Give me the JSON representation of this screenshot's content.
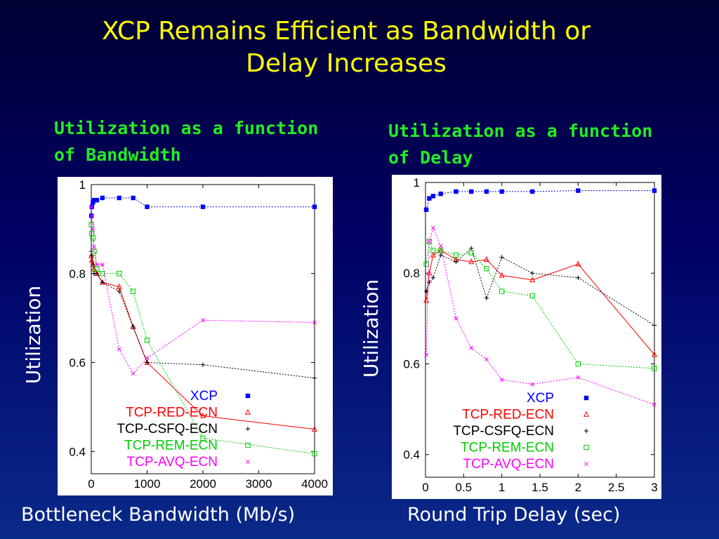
{
  "slide": {
    "title_line1": "XCP Remains Efficient as Bandwidth or",
    "title_line2": "Delay Increases"
  },
  "colors": {
    "XCP": "#0000ff",
    "TCP-RED-ECN": "#ff0000",
    "TCP-CSFQ-ECN": "#000000",
    "TCP-REM-ECN": "#00cc00",
    "TCP-AVQ-ECN": "#ff00ff"
  },
  "chart_data": [
    {
      "type": "line",
      "subtitle_line1": "Utilization as a function",
      "subtitle_line2": "of Bandwidth",
      "ylabel": "Utilization",
      "xlabel": "Bottleneck Bandwidth (Mb/s)",
      "xlim": [
        0,
        4000
      ],
      "ylim": [
        0.35,
        1.0
      ],
      "xticks": [
        {
          "v": 0,
          "label": "0"
        },
        {
          "v": 1000,
          "label": "1000"
        },
        {
          "v": 2000,
          "label": "2000"
        },
        {
          "v": 3000,
          "label": "3000"
        },
        {
          "v": 4000,
          "label": "4000"
        }
      ],
      "yticks": [
        {
          "v": 0.4,
          "label": "0.4"
        },
        {
          "v": 0.6,
          "label": "0.6"
        },
        {
          "v": 0.8,
          "label": "0.8"
        },
        {
          "v": 1.0,
          "label": "1"
        }
      ],
      "series": [
        {
          "name": "XCP",
          "marker": "square-filled",
          "x": [
            1,
            10,
            30,
            50,
            100,
            200,
            500,
            750,
            1000,
            2000,
            4000
          ],
          "y": [
            0.93,
            0.95,
            0.96,
            0.965,
            0.965,
            0.97,
            0.97,
            0.97,
            0.95,
            0.95,
            0.95
          ]
        },
        {
          "name": "TCP-RED-ECN",
          "marker": "triangle",
          "x": [
            1,
            10,
            30,
            50,
            100,
            200,
            500,
            750,
            1000,
            2000,
            4000
          ],
          "y": [
            0.84,
            0.83,
            0.82,
            0.81,
            0.8,
            0.78,
            0.77,
            0.68,
            0.6,
            0.48,
            0.45
          ]
        },
        {
          "name": "TCP-CSFQ-ECN",
          "marker": "plus",
          "x": [
            1,
            10,
            30,
            50,
            100,
            200,
            500,
            750,
            1000,
            2000,
            4000
          ],
          "y": [
            0.85,
            0.84,
            0.82,
            0.8,
            0.8,
            0.78,
            0.76,
            0.68,
            0.6,
            0.595,
            0.565
          ]
        },
        {
          "name": "TCP-REM-ECN",
          "marker": "square-open",
          "x": [
            1,
            10,
            30,
            50,
            100,
            200,
            500,
            750,
            1000,
            2000,
            4000
          ],
          "y": [
            0.91,
            0.89,
            0.88,
            0.85,
            0.81,
            0.8,
            0.8,
            0.76,
            0.65,
            0.43,
            0.395
          ]
        },
        {
          "name": "TCP-AVQ-ECN",
          "marker": "cross",
          "x": [
            1,
            10,
            30,
            50,
            100,
            200,
            500,
            750,
            1000,
            2000,
            4000
          ],
          "y": [
            0.95,
            0.93,
            0.9,
            0.86,
            0.82,
            0.82,
            0.63,
            0.575,
            0.61,
            0.695,
            0.69
          ]
        }
      ]
    },
    {
      "type": "line",
      "subtitle_line1": "Utilization as a function",
      "subtitle_line2": "of Delay",
      "ylabel": "Utilization",
      "xlabel": "Round Trip Delay (sec)",
      "xlim": [
        0,
        3
      ],
      "ylim": [
        0.35,
        1.0
      ],
      "xticks": [
        {
          "v": 0,
          "label": "0"
        },
        {
          "v": 0.5,
          "label": "0.5"
        },
        {
          "v": 1,
          "label": "1"
        },
        {
          "v": 1.5,
          "label": "1.5"
        },
        {
          "v": 2,
          "label": "2"
        },
        {
          "v": 2.5,
          "label": "2.5"
        },
        {
          "v": 3,
          "label": "3"
        }
      ],
      "yticks": [
        {
          "v": 0.4,
          "label": "0.4"
        },
        {
          "v": 0.6,
          "label": "0.6"
        },
        {
          "v": 0.8,
          "label": "0.8"
        },
        {
          "v": 1.0,
          "label": "1"
        }
      ],
      "series": [
        {
          "name": "XCP",
          "marker": "square-filled",
          "x": [
            0.01,
            0.05,
            0.1,
            0.2,
            0.4,
            0.6,
            0.8,
            1.0,
            1.4,
            2.0,
            3.0
          ],
          "y": [
            0.94,
            0.965,
            0.97,
            0.975,
            0.98,
            0.98,
            0.98,
            0.98,
            0.98,
            0.982,
            0.982
          ]
        },
        {
          "name": "TCP-RED-ECN",
          "marker": "triangle",
          "x": [
            0.01,
            0.05,
            0.1,
            0.2,
            0.4,
            0.6,
            0.8,
            1.0,
            1.4,
            2.0,
            3.0
          ],
          "y": [
            0.74,
            0.8,
            0.84,
            0.85,
            0.83,
            0.825,
            0.83,
            0.795,
            0.785,
            0.82,
            0.62
          ]
        },
        {
          "name": "TCP-CSFQ-ECN",
          "marker": "plus",
          "x": [
            0.01,
            0.05,
            0.1,
            0.2,
            0.4,
            0.6,
            0.8,
            1.0,
            1.4,
            2.0,
            3.0
          ],
          "y": [
            0.76,
            0.78,
            0.79,
            0.84,
            0.825,
            0.855,
            0.745,
            0.835,
            0.8,
            0.79,
            0.685
          ]
        },
        {
          "name": "TCP-REM-ECN",
          "marker": "square-open",
          "x": [
            0.01,
            0.05,
            0.1,
            0.2,
            0.4,
            0.6,
            0.8,
            1.0,
            1.4,
            2.0,
            3.0
          ],
          "y": [
            0.82,
            0.87,
            0.85,
            0.85,
            0.84,
            0.845,
            0.81,
            0.76,
            0.75,
            0.6,
            0.59
          ]
        },
        {
          "name": "TCP-AVQ-ECN",
          "marker": "cross",
          "x": [
            0.01,
            0.05,
            0.1,
            0.2,
            0.4,
            0.6,
            0.8,
            1.0,
            1.4,
            2.0,
            3.0
          ],
          "y": [
            0.62,
            0.87,
            0.9,
            0.86,
            0.7,
            0.635,
            0.61,
            0.565,
            0.555,
            0.57,
            0.51
          ]
        }
      ]
    }
  ]
}
